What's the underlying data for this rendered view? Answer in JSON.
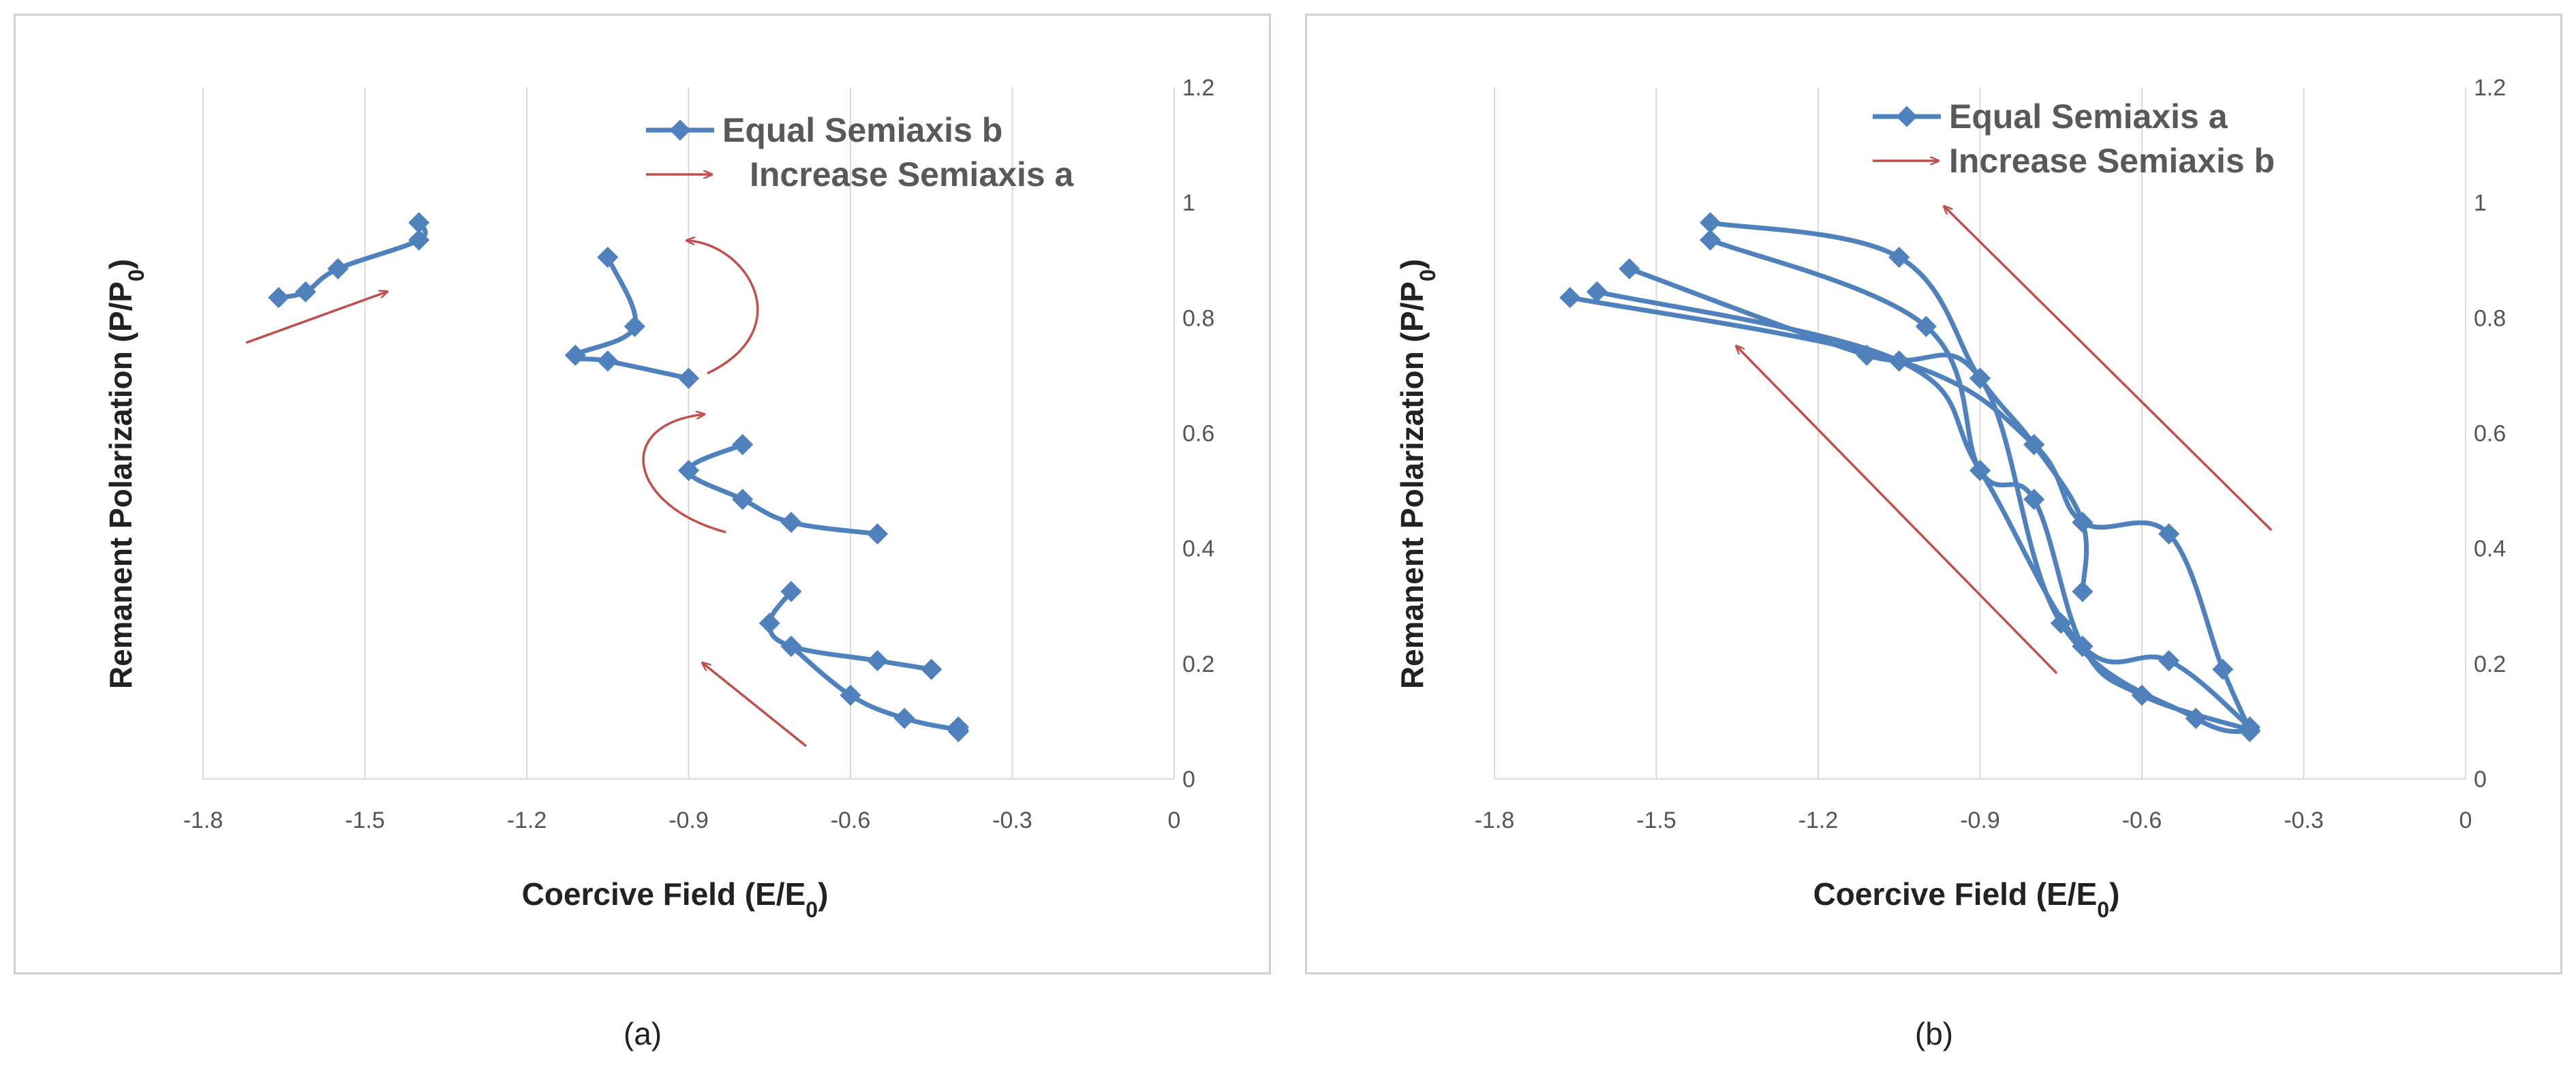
{
  "chart_data": [
    {
      "panel": "(a)",
      "type": "line",
      "xlabel": "Coercive Field (E/E",
      "xlabel_sub": "0",
      "xlabel_end": ")",
      "ylabel": "Remanent Polarization (P/P",
      "ylabel_sub": "0",
      "ylabel_end": ")",
      "xlim": [
        -1.8,
        0
      ],
      "ylim": [
        0,
        1.2
      ],
      "xticks": [
        "-1.8",
        "-1.5",
        "-1.2",
        "-0.9",
        "-0.6",
        "-0.3",
        "0"
      ],
      "yticks": [
        "0",
        "0.2",
        "0.4",
        "0.6",
        "0.8",
        "1",
        "1.2"
      ],
      "grid": "vertical",
      "legend": {
        "position": "top-right",
        "series_label": "Equal Semiaxis b",
        "arrow_label": "Increase Semiaxis a"
      },
      "series": [
        {
          "x": [
            -1.66,
            -1.61,
            -1.55,
            -1.4,
            -1.4
          ],
          "y": [
            0.835,
            0.845,
            0.885,
            0.935,
            0.965
          ]
        },
        {
          "x": [
            -0.9,
            -1.05,
            -1.11,
            -1.0,
            -1.05
          ],
          "y": [
            0.695,
            0.725,
            0.735,
            0.785,
            0.905
          ]
        },
        {
          "x": [
            -0.55,
            -0.71,
            -0.8,
            -0.9,
            -0.8
          ],
          "y": [
            0.425,
            0.445,
            0.485,
            0.535,
            0.58
          ]
        },
        {
          "x": [
            -0.45,
            -0.55,
            -0.71,
            -0.75,
            -0.71
          ],
          "y": [
            0.19,
            0.205,
            0.23,
            0.27,
            0.325
          ]
        },
        {
          "x": [
            -0.4,
            -0.5,
            -0.6,
            -0.71
          ],
          "y": [
            0.085,
            0.105,
            0.145,
            0.23
          ]
        },
        {
          "x": [
            -0.4,
            -0.4
          ],
          "y": [
            0.082,
            0.09
          ]
        }
      ]
    },
    {
      "panel": "(b)",
      "type": "line",
      "xlabel": "Coercive Field (E/E",
      "xlabel_sub": "0",
      "xlabel_end": ")",
      "ylabel": "Remanent Polarization (P/P",
      "ylabel_sub": "0",
      "ylabel_end": ")",
      "xlim": [
        -1.8,
        0
      ],
      "ylim": [
        0,
        1.2
      ],
      "xticks": [
        "-1.8",
        "-1.5",
        "-1.2",
        "-0.9",
        "-0.6",
        "-0.3",
        "0"
      ],
      "yticks": [
        "0",
        "0.2",
        "0.4",
        "0.6",
        "0.8",
        "1",
        "1.2"
      ],
      "grid": "vertical",
      "legend": {
        "position": "top-center",
        "series_label": "Equal Semiaxis a",
        "arrow_label": "Increase Semiaxis b"
      },
      "series": [
        {
          "x": [
            -1.4,
            -1.05,
            -0.9,
            -0.8,
            -0.71,
            -0.71
          ],
          "y": [
            0.965,
            0.905,
            0.695,
            0.58,
            0.445,
            0.325
          ]
        },
        {
          "x": [
            -1.4,
            -1.0,
            -0.9,
            -0.8,
            -0.71,
            -0.6,
            -0.4
          ],
          "y": [
            0.935,
            0.785,
            0.535,
            0.485,
            0.23,
            0.145,
            0.085
          ]
        },
        {
          "x": [
            -1.55,
            -1.11,
            -0.9,
            -0.75,
            -0.5,
            -0.4
          ],
          "y": [
            0.885,
            0.735,
            0.695,
            0.27,
            0.105,
            0.082
          ]
        },
        {
          "x": [
            -1.61,
            -1.05,
            -0.9,
            -0.71,
            -0.55,
            -0.4
          ],
          "y": [
            0.845,
            0.725,
            0.535,
            0.23,
            0.205,
            0.09
          ]
        },
        {
          "x": [
            -1.66,
            -1.05,
            -0.8,
            -0.71,
            -0.55,
            -0.45,
            -0.4
          ],
          "y": [
            0.835,
            0.725,
            0.58,
            0.445,
            0.425,
            0.19,
            0.085
          ]
        }
      ]
    }
  ],
  "captions": [
    "(a)",
    "(b)"
  ],
  "colors": {
    "series": "#4f81bd",
    "arrow": "#c0504d",
    "grid": "#d9d9d9"
  }
}
